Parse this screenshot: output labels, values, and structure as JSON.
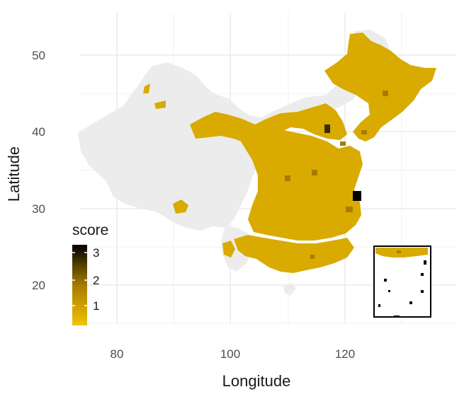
{
  "map": {
    "x_axis": {
      "title": "Longitude",
      "ticks": [
        "80",
        "100",
        "120"
      ]
    },
    "y_axis": {
      "title": "Latitude",
      "ticks": [
        "20",
        "30",
        "40",
        "50"
      ]
    },
    "legend": {
      "title": "score",
      "ticks": [
        "1",
        "2",
        "3"
      ],
      "color_low": "#f2c200",
      "color_high": "#000000"
    },
    "colors": {
      "background": "#ffffff",
      "grid": "#ebebeb",
      "no_data_region": "#ececec",
      "score_base": "#d9aa00",
      "score_mid": "#a67c00",
      "score_high": "#3a2c00"
    },
    "regions": [
      {
        "name": "western-no-data-region",
        "score": null
      },
      {
        "name": "northeast-region",
        "score": 1
      },
      {
        "name": "central-east-region",
        "score": 1
      },
      {
        "name": "southern-region",
        "score": 1
      }
    ]
  }
}
